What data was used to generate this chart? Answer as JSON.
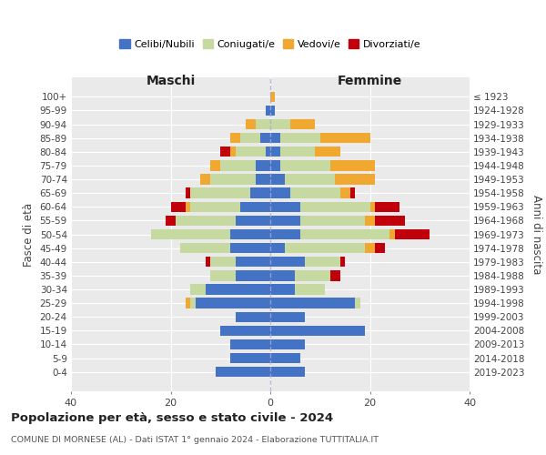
{
  "age_groups": [
    "0-4",
    "5-9",
    "10-14",
    "15-19",
    "20-24",
    "25-29",
    "30-34",
    "35-39",
    "40-44",
    "45-49",
    "50-54",
    "55-59",
    "60-64",
    "65-69",
    "70-74",
    "75-79",
    "80-84",
    "85-89",
    "90-94",
    "95-99",
    "100+"
  ],
  "birth_years": [
    "2019-2023",
    "2014-2018",
    "2009-2013",
    "2004-2008",
    "1999-2003",
    "1994-1998",
    "1989-1993",
    "1984-1988",
    "1979-1983",
    "1974-1978",
    "1969-1973",
    "1964-1968",
    "1959-1963",
    "1954-1958",
    "1949-1953",
    "1944-1948",
    "1939-1943",
    "1934-1938",
    "1929-1933",
    "1924-1928",
    "≤ 1923"
  ],
  "colors": {
    "celibi": "#4472c4",
    "coniugati": "#c6d9a0",
    "vedovi": "#f0a830",
    "divorziati": "#c0000b"
  },
  "male": {
    "celibi": [
      11,
      8,
      8,
      10,
      7,
      15,
      13,
      7,
      7,
      8,
      8,
      7,
      6,
      4,
      3,
      3,
      1,
      2,
      0,
      1,
      0
    ],
    "coniugati": [
      0,
      0,
      0,
      0,
      0,
      1,
      3,
      5,
      5,
      10,
      16,
      12,
      10,
      12,
      9,
      7,
      6,
      4,
      3,
      0,
      0
    ],
    "vedovi": [
      0,
      0,
      0,
      0,
      0,
      1,
      0,
      0,
      0,
      0,
      0,
      0,
      1,
      0,
      2,
      2,
      1,
      2,
      2,
      0,
      0
    ],
    "divorziati": [
      0,
      0,
      0,
      0,
      0,
      0,
      0,
      0,
      1,
      0,
      0,
      2,
      3,
      1,
      0,
      0,
      2,
      0,
      0,
      0,
      0
    ]
  },
  "female": {
    "celibi": [
      7,
      6,
      7,
      19,
      7,
      17,
      5,
      5,
      7,
      3,
      6,
      6,
      6,
      4,
      3,
      2,
      2,
      2,
      0,
      1,
      0
    ],
    "coniugati": [
      0,
      0,
      0,
      0,
      0,
      1,
      6,
      7,
      7,
      16,
      18,
      13,
      14,
      10,
      10,
      10,
      7,
      8,
      4,
      0,
      0
    ],
    "vedovi": [
      0,
      0,
      0,
      0,
      0,
      0,
      0,
      0,
      0,
      2,
      1,
      2,
      1,
      2,
      8,
      9,
      5,
      10,
      5,
      0,
      1
    ],
    "divorziati": [
      0,
      0,
      0,
      0,
      0,
      0,
      0,
      2,
      1,
      2,
      7,
      6,
      5,
      1,
      0,
      0,
      0,
      0,
      0,
      0,
      0
    ]
  },
  "xlim": [
    -40,
    40
  ],
  "xlabel_ticks": [
    -40,
    -20,
    0,
    20,
    40
  ],
  "xlabel_labels": [
    "40",
    "20",
    "0",
    "20",
    "40"
  ],
  "title": "Popolazione per età, sesso e stato civile - 2024",
  "subtitle": "COMUNE DI MORNESE (AL) - Dati ISTAT 1° gennaio 2024 - Elaborazione TUTTITALIA.IT",
  "ylabel_left": "Fasce di età",
  "ylabel_right": "Anni di nascita",
  "label_maschi": "Maschi",
  "label_femmine": "Femmine",
  "legend_labels": [
    "Celibi/Nubili",
    "Coniugati/e",
    "Vedovi/e",
    "Divorziati/e"
  ],
  "background_color": "#ffffff",
  "plot_bg_color": "#eaeaea",
  "grid_color": "#ffffff",
  "bar_height": 0.75
}
